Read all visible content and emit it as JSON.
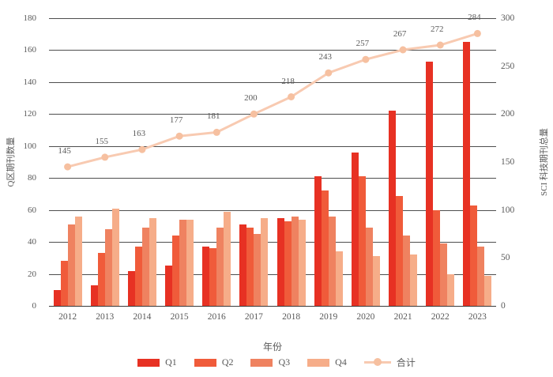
{
  "chart_data": {
    "type": "bar+line",
    "title": "",
    "categories": [
      "2012",
      "2013",
      "2014",
      "2015",
      "2016",
      "2017",
      "2018",
      "2019",
      "2020",
      "2021",
      "2022",
      "2023"
    ],
    "series": [
      {
        "name": "Q1",
        "type": "bar",
        "axis": "left",
        "color": "#e73123",
        "values": [
          10,
          13,
          22,
          25,
          37,
          51,
          55,
          81,
          96,
          122,
          153,
          165
        ]
      },
      {
        "name": "Q2",
        "type": "bar",
        "axis": "left",
        "color": "#f05b3a",
        "values": [
          28,
          33,
          37,
          44,
          36,
          49,
          53,
          72,
          81,
          69,
          60,
          63
        ]
      },
      {
        "name": "Q3",
        "type": "bar",
        "axis": "left",
        "color": "#ef8260",
        "values": [
          51,
          48,
          49,
          54,
          49,
          45,
          56,
          56,
          49,
          44,
          39,
          37
        ]
      },
      {
        "name": "Q4",
        "type": "bar",
        "axis": "left",
        "color": "#f6ad89",
        "values": [
          56,
          61,
          55,
          54,
          59,
          55,
          54,
          34,
          31,
          32,
          20,
          19
        ]
      },
      {
        "name": "合计",
        "type": "line",
        "axis": "right",
        "color": "#f8cab1",
        "marker_color": "#f6c0a0",
        "show_labels": true,
        "values": [
          145,
          155,
          163,
          177,
          181,
          200,
          218,
          243,
          257,
          267,
          272,
          284
        ]
      }
    ],
    "xlabel": "年份",
    "ylabel_left": "Q区期刊数量",
    "ylabel_right": "SCI 科技期刊总量",
    "ylim_left": [
      0,
      180
    ],
    "ylim_right": [
      0,
      300
    ],
    "yticks_left": [
      0,
      20,
      40,
      60,
      80,
      100,
      120,
      140,
      160,
      180
    ],
    "yticks_right": [
      0,
      50,
      100,
      150,
      200,
      250,
      300
    ],
    "grid": true,
    "legend_position": "bottom",
    "text_color": "#595959",
    "grid_color": "#4e4e4e"
  }
}
